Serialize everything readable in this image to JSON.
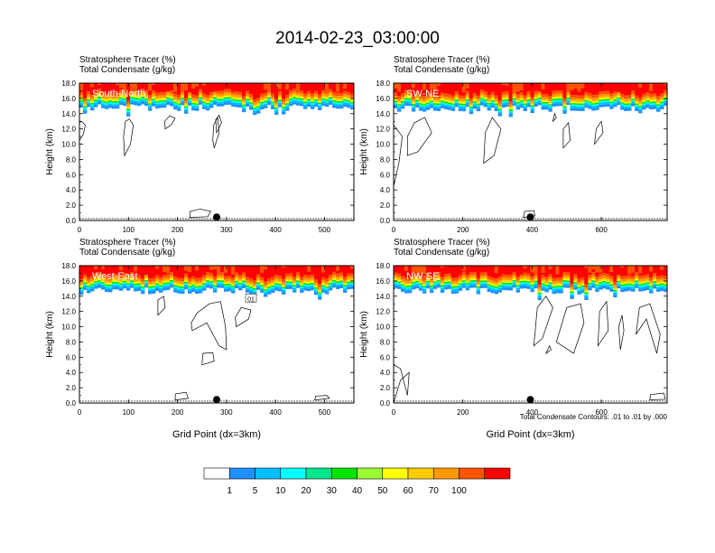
{
  "title": "2014-02-23_03:00:00",
  "palette": [
    "#ffffff",
    "#1e90ff",
    "#00bfff",
    "#00ffff",
    "#00e68a",
    "#00e600",
    "#99ff33",
    "#ffff00",
    "#ffcc00",
    "#ff9900",
    "#ff5500",
    "#ff0000"
  ],
  "colorbar_labels": [
    "1",
    "5",
    "10",
    "20",
    "30",
    "40",
    "50",
    "60",
    "70",
    "100"
  ],
  "contour_note": "Total Condensate Contours: .01 to .01 by .000",
  "xlabel": "Grid Point (dx=3km)",
  "ylabel": "Height (km)",
  "chart_data": [
    {
      "type": "heatmap",
      "cross_section": "South-North",
      "header_line1": "Stratosphere Tracer   (%)",
      "header_line2": "Total Condensate   (g/kg)",
      "ylabel": "Height (km)",
      "xlabel": "",
      "xlim": [
        0,
        560
      ],
      "ylim": [
        0,
        18
      ],
      "xticks": [
        "0",
        "100",
        "200",
        "300",
        "400",
        "500"
      ],
      "xtick_values": [
        0,
        100,
        200,
        300,
        400,
        500
      ],
      "yticks": [
        "0.0",
        "2.0",
        "4.0",
        "6.0",
        "8.0",
        "10.0",
        "12.0",
        "14.0",
        "16.0",
        "18.0"
      ],
      "ytick_values": [
        0,
        2,
        4,
        6,
        8,
        10,
        12,
        14,
        16,
        18
      ],
      "marker_x": 280,
      "tracer_base_km": 15.7,
      "contours": [
        [
          [
            92,
            8.5
          ],
          [
            104,
            10.0
          ],
          [
            110,
            12.5
          ],
          [
            102,
            13.3
          ],
          [
            94,
            13.0
          ],
          [
            90,
            11.0
          ]
        ],
        [
          [
            0,
            10.5
          ],
          [
            8,
            11.3
          ],
          [
            12,
            12.5
          ],
          [
            4,
            13.0
          ],
          [
            0,
            12.8
          ]
        ],
        [
          [
            175,
            12.0
          ],
          [
            188,
            12.6
          ],
          [
            195,
            13.4
          ],
          [
            184,
            13.7
          ],
          [
            174,
            13.0
          ]
        ],
        [
          [
            275,
            9.5
          ],
          [
            285,
            11.5
          ],
          [
            282,
            13.5
          ],
          [
            274,
            12.5
          ],
          [
            272,
            10.5
          ]
        ],
        [
          [
            280,
            11.5
          ],
          [
            290,
            12.8
          ],
          [
            285,
            13.8
          ],
          [
            278,
            13.2
          ]
        ],
        [
          [
            225,
            0.4
          ],
          [
            262,
            0.5
          ],
          [
            268,
            1.2
          ],
          [
            246,
            1.5
          ],
          [
            226,
            1.2
          ]
        ]
      ]
    },
    {
      "type": "heatmap",
      "cross_section": "SW-NE",
      "header_line1": "Stratosphere Tracer   (%)",
      "header_line2": "Total Condensate   (g/kg)",
      "ylabel": "Height (km)",
      "xlabel": "",
      "xlim": [
        0,
        790
      ],
      "ylim": [
        0,
        18
      ],
      "xticks": [
        "0",
        "200",
        "400",
        "600"
      ],
      "xtick_values": [
        0,
        200,
        400,
        600
      ],
      "yticks": [
        "0.0",
        "2.0",
        "4.0",
        "6.0",
        "8.0",
        "10.0",
        "12.0",
        "14.0",
        "16.0",
        "18.0"
      ],
      "ytick_values": [
        0,
        2,
        4,
        6,
        8,
        10,
        12,
        14,
        16,
        18
      ],
      "marker_x": 395,
      "tracer_base_km": 15.6,
      "contours": [
        [
          [
            0,
            4.5
          ],
          [
            15,
            7.5
          ],
          [
            25,
            11.0
          ],
          [
            0,
            12.5
          ]
        ],
        [
          [
            40,
            8.5
          ],
          [
            70,
            9.0
          ],
          [
            110,
            11.5
          ],
          [
            90,
            13.5
          ],
          [
            60,
            12.8
          ],
          [
            40,
            11.0
          ]
        ],
        [
          [
            260,
            7.5
          ],
          [
            290,
            8.5
          ],
          [
            310,
            12.0
          ],
          [
            285,
            13.5
          ],
          [
            265,
            11.5
          ]
        ],
        [
          [
            490,
            9.5
          ],
          [
            510,
            10.5
          ],
          [
            505,
            12.8
          ],
          [
            490,
            12.0
          ]
        ],
        [
          [
            580,
            10.0
          ],
          [
            605,
            11.5
          ],
          [
            600,
            13.0
          ],
          [
            585,
            12.0
          ]
        ],
        [
          [
            460,
            13.0
          ],
          [
            470,
            13.5
          ],
          [
            465,
            14.0
          ]
        ],
        [
          [
            375,
            0.4
          ],
          [
            408,
            0.6
          ],
          [
            405,
            1.3
          ],
          [
            378,
            1.2
          ]
        ]
      ]
    },
    {
      "type": "heatmap",
      "cross_section": "West-East",
      "header_line1": "Stratosphere Tracer   (%)",
      "header_line2": "Total Condensate   (g/kg)",
      "ylabel": "Height (km)",
      "xlabel": "Grid Point (dx=3km)",
      "xlim": [
        0,
        560
      ],
      "ylim": [
        0,
        18
      ],
      "xticks": [
        "0",
        "100",
        "200",
        "300",
        "400",
        "500"
      ],
      "xtick_values": [
        0,
        100,
        200,
        300,
        400,
        500
      ],
      "yticks": [
        "0.0",
        "2.0",
        "4.0",
        "6.0",
        "8.0",
        "10.0",
        "12.0",
        "14.0",
        "16.0",
        "18.0"
      ],
      "ytick_values": [
        0,
        2,
        4,
        6,
        8,
        10,
        12,
        14,
        16,
        18
      ],
      "marker_x": 280,
      "tracer_base_km": 15.6,
      "contour_label": "01",
      "contour_label_x": 350,
      "contour_label_y": 13.7,
      "contours": [
        [
          [
            230,
            9.5
          ],
          [
            260,
            10.5
          ],
          [
            285,
            7.5
          ],
          [
            300,
            7.0
          ],
          [
            298,
            10.0
          ],
          [
            288,
            13.3
          ],
          [
            265,
            13.0
          ],
          [
            240,
            11.8
          ],
          [
            228,
            10.5
          ]
        ],
        [
          [
            320,
            10.0
          ],
          [
            345,
            11.0
          ],
          [
            350,
            12.2
          ],
          [
            330,
            12.5
          ],
          [
            318,
            11.2
          ]
        ],
        [
          [
            250,
            5.0
          ],
          [
            275,
            5.5
          ],
          [
            272,
            6.6
          ],
          [
            252,
            6.5
          ]
        ],
        [
          [
            160,
            11.5
          ],
          [
            175,
            12.5
          ],
          [
            172,
            14.0
          ],
          [
            160,
            13.5
          ]
        ],
        [
          [
            195,
            0.4
          ],
          [
            222,
            0.6
          ],
          [
            218,
            1.4
          ],
          [
            196,
            1.2
          ]
        ],
        [
          [
            480,
            0.4
          ],
          [
            510,
            0.6
          ],
          [
            505,
            1.0
          ],
          [
            482,
            0.9
          ]
        ]
      ]
    },
    {
      "type": "heatmap",
      "cross_section": "NW-SE",
      "header_line1": "Stratosphere Tracer   (%)",
      "header_line2": "Total Condensate   (g/kg)",
      "ylabel": "Height (km)",
      "xlabel": "Grid Point (dx=3km)",
      "xlim": [
        0,
        790
      ],
      "ylim": [
        0,
        18
      ],
      "xticks": [
        "0",
        "200",
        "400",
        "600"
      ],
      "xtick_values": [
        0,
        200,
        400,
        600
      ],
      "yticks": [
        "0.0",
        "2.0",
        "4.0",
        "6.0",
        "8.0",
        "10.0",
        "12.0",
        "14.0",
        "16.0",
        "18.0"
      ],
      "ytick_values": [
        0,
        2,
        4,
        6,
        8,
        10,
        12,
        14,
        16,
        18
      ],
      "marker_x": 395,
      "tracer_base_km": 15.6,
      "contours": [
        [
          [
            0,
            0.0
          ],
          [
            20,
            3.0
          ],
          [
            45,
            4.0
          ],
          [
            40,
            1.0
          ],
          [
            20,
            4.5
          ],
          [
            0,
            5.0
          ]
        ],
        [
          [
            405,
            7.5
          ],
          [
            430,
            8.5
          ],
          [
            460,
            12.5
          ],
          [
            440,
            14.0
          ],
          [
            415,
            12.5
          ]
        ],
        [
          [
            470,
            8.0
          ],
          [
            520,
            6.5
          ],
          [
            550,
            10.5
          ],
          [
            540,
            13.0
          ],
          [
            500,
            12.5
          ]
        ],
        [
          [
            590,
            7.5
          ],
          [
            620,
            9.5
          ],
          [
            615,
            13.3
          ],
          [
            595,
            12.0
          ]
        ],
        [
          [
            655,
            7.0
          ],
          [
            665,
            9.5
          ],
          [
            660,
            11.5
          ],
          [
            650,
            10.0
          ]
        ],
        [
          [
            700,
            9.0
          ],
          [
            730,
            11.0
          ],
          [
            760,
            6.5
          ],
          [
            770,
            9.0
          ],
          [
            740,
            13.0
          ],
          [
            710,
            12.5
          ]
        ],
        [
          [
            440,
            6.5
          ],
          [
            455,
            7.0
          ],
          [
            450,
            7.5
          ]
        ],
        [
          [
            740,
            0.4
          ],
          [
            785,
            0.5
          ],
          [
            780,
            1.3
          ],
          [
            742,
            1.1
          ]
        ]
      ]
    }
  ]
}
